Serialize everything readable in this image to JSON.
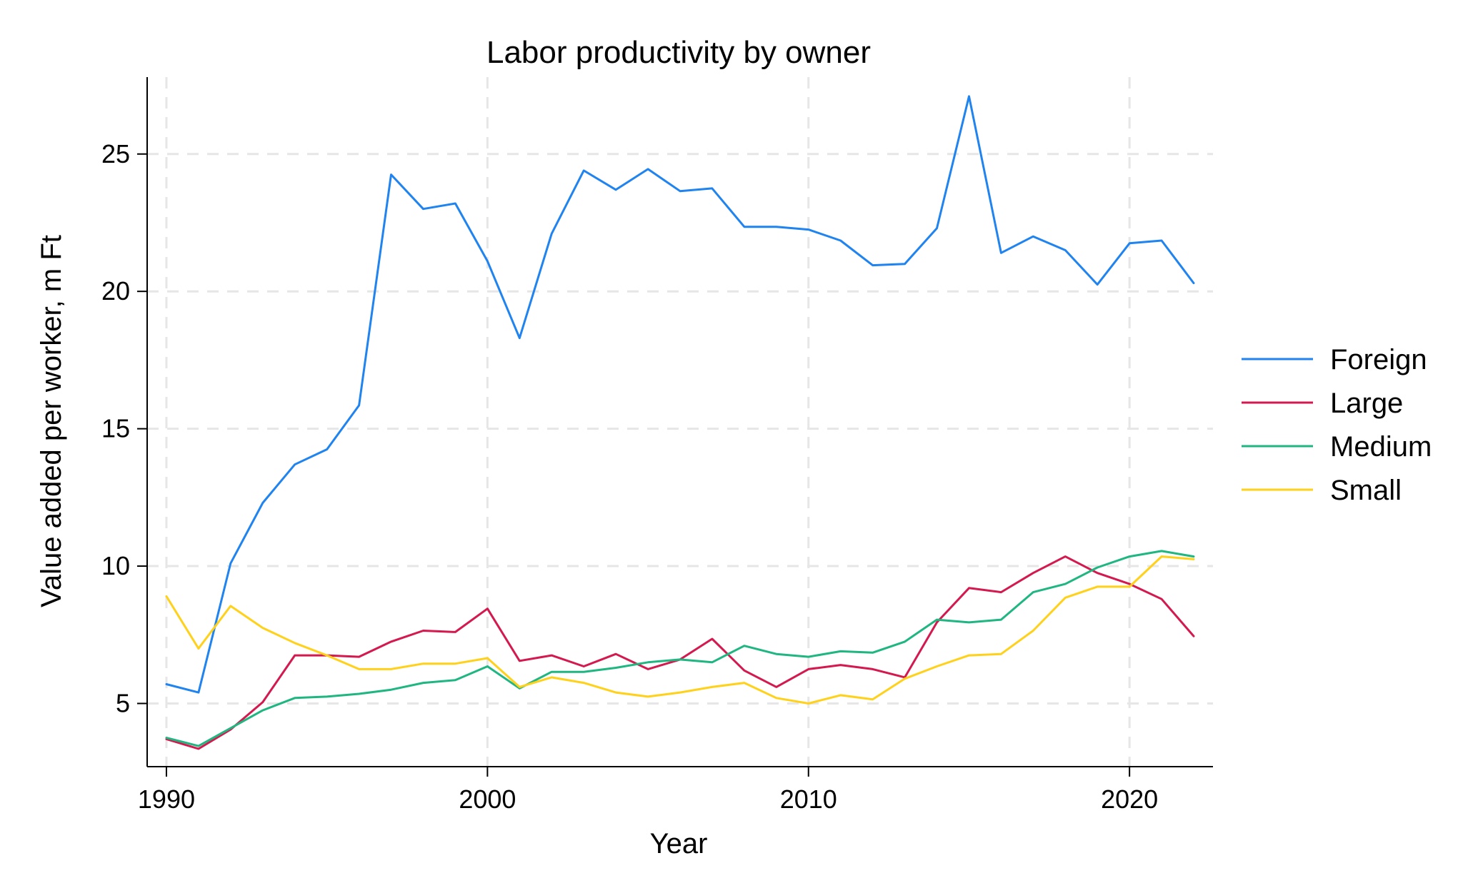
{
  "chart_data": {
    "type": "line",
    "title": "Labor productivity by owner",
    "xlabel": "Year",
    "ylabel": "Value added per worker, m Ft",
    "xlim": [
      1989.4,
      2022.6
    ],
    "ylim": [
      2.7,
      27.8
    ],
    "xticks": [
      1990,
      2000,
      2010,
      2020
    ],
    "yticks": [
      5,
      10,
      15,
      20,
      25
    ],
    "xtick_labels": [
      "1990",
      "2000",
      "2010",
      "2020"
    ],
    "ytick_labels": [
      "5",
      "10",
      "15",
      "20",
      "25"
    ],
    "grid": true,
    "legend_position": "right",
    "x": [
      1990,
      1991,
      1992,
      1993,
      1994,
      1995,
      1996,
      1997,
      1998,
      1999,
      2000,
      2001,
      2002,
      2003,
      2004,
      2005,
      2006,
      2007,
      2008,
      2009,
      2010,
      2011,
      2012,
      2013,
      2014,
      2015,
      2016,
      2017,
      2018,
      2019,
      2020,
      2021,
      2022
    ],
    "series": [
      {
        "name": "Foreign",
        "color": "#1f83f0",
        "values": [
          5.7,
          5.4,
          10.1,
          12.3,
          13.7,
          14.25,
          15.85,
          24.25,
          23.0,
          23.2,
          21.1,
          18.3,
          22.1,
          24.4,
          23.7,
          24.45,
          23.65,
          23.75,
          22.35,
          22.35,
          22.25,
          21.85,
          20.95,
          21.0,
          22.3,
          27.1,
          21.4,
          22.0,
          21.5,
          20.25,
          21.75,
          21.85,
          20.3
        ]
      },
      {
        "name": "Large",
        "color": "#d4194f",
        "values": [
          3.7,
          3.35,
          4.05,
          5.05,
          6.75,
          6.75,
          6.7,
          7.25,
          7.65,
          7.6,
          8.45,
          6.55,
          6.75,
          6.35,
          6.8,
          6.25,
          6.6,
          7.35,
          6.2,
          5.6,
          6.25,
          6.4,
          6.25,
          5.95,
          7.95,
          9.2,
          9.05,
          9.75,
          10.35,
          9.75,
          9.35,
          8.8,
          7.45
        ]
      },
      {
        "name": "Medium",
        "color": "#1fb681",
        "values": [
          3.75,
          3.45,
          4.1,
          4.75,
          5.2,
          5.25,
          5.35,
          5.5,
          5.75,
          5.85,
          6.35,
          5.55,
          6.15,
          6.15,
          6.3,
          6.5,
          6.6,
          6.5,
          7.1,
          6.8,
          6.7,
          6.9,
          6.85,
          7.25,
          8.05,
          7.95,
          8.05,
          9.05,
          9.35,
          9.95,
          10.35,
          10.55,
          10.35
        ]
      },
      {
        "name": "Small",
        "color": "#ffd11a",
        "values": [
          8.9,
          7.0,
          8.55,
          7.75,
          7.2,
          6.75,
          6.25,
          6.25,
          6.45,
          6.45,
          6.65,
          5.6,
          5.95,
          5.75,
          5.4,
          5.25,
          5.4,
          5.6,
          5.75,
          5.2,
          5.0,
          5.3,
          5.15,
          5.9,
          6.35,
          6.75,
          6.8,
          7.65,
          8.85,
          9.25,
          9.25,
          10.35,
          10.25
        ]
      }
    ]
  }
}
